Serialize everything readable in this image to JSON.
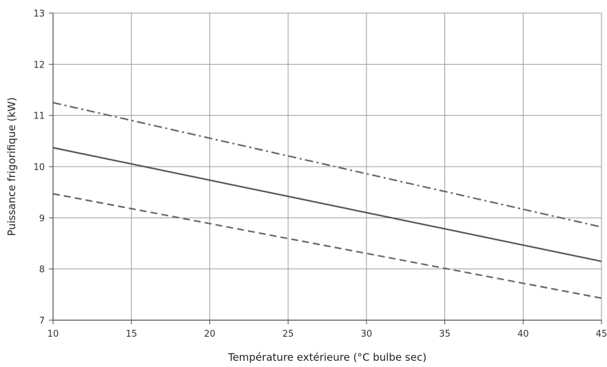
{
  "chart_data": {
    "type": "line",
    "title": "",
    "xlabel": "Température extérieure (°C bulbe sec)",
    "ylabel": "Puissance frigorifique (kW)",
    "xlim": [
      10,
      45
    ],
    "ylim": [
      7,
      13
    ],
    "xticks": [
      10,
      15,
      20,
      25,
      30,
      35,
      40,
      45
    ],
    "yticks": [
      7,
      8,
      9,
      10,
      11,
      12,
      13
    ],
    "grid": true,
    "legend": "none",
    "series": [
      {
        "style": "dash-dot",
        "color": "#666666",
        "x": [
          10,
          45
        ],
        "y": [
          11.25,
          8.82
        ]
      },
      {
        "style": "solid",
        "color": "#555555",
        "x": [
          10,
          45
        ],
        "y": [
          10.37,
          8.15
        ]
      },
      {
        "style": "dashed",
        "color": "#666666",
        "x": [
          10,
          45
        ],
        "y": [
          9.47,
          7.43
        ]
      }
    ]
  }
}
